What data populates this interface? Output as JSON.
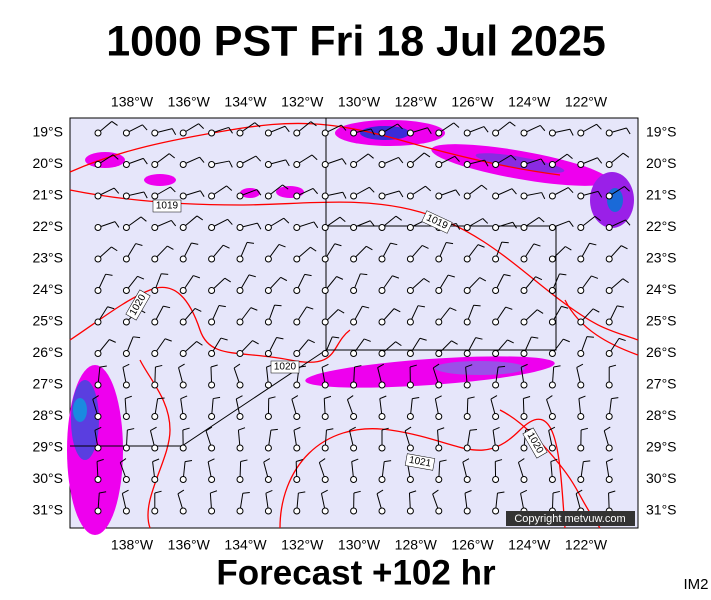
{
  "header": {
    "title": "1000 PST Fri 18 Jul 2025"
  },
  "map": {
    "longitudes": [
      "138°W",
      "136°W",
      "134°W",
      "132°W",
      "130°W",
      "128°W",
      "126°W",
      "124°W",
      "122°W"
    ],
    "latitudes": [
      "19°S",
      "20°S",
      "21°S",
      "22°S",
      "23°S",
      "24°S",
      "25°S",
      "26°S",
      "27°S",
      "28°S",
      "29°S",
      "30°S",
      "31°S"
    ],
    "isobar_labels": [
      "1019",
      "1019",
      "1020",
      "1020",
      "1020",
      "1021"
    ],
    "copyright": "Copyright metvuw.com"
  },
  "footer": {
    "forecast": "Forecast +102 hr",
    "code": "IM2"
  }
}
